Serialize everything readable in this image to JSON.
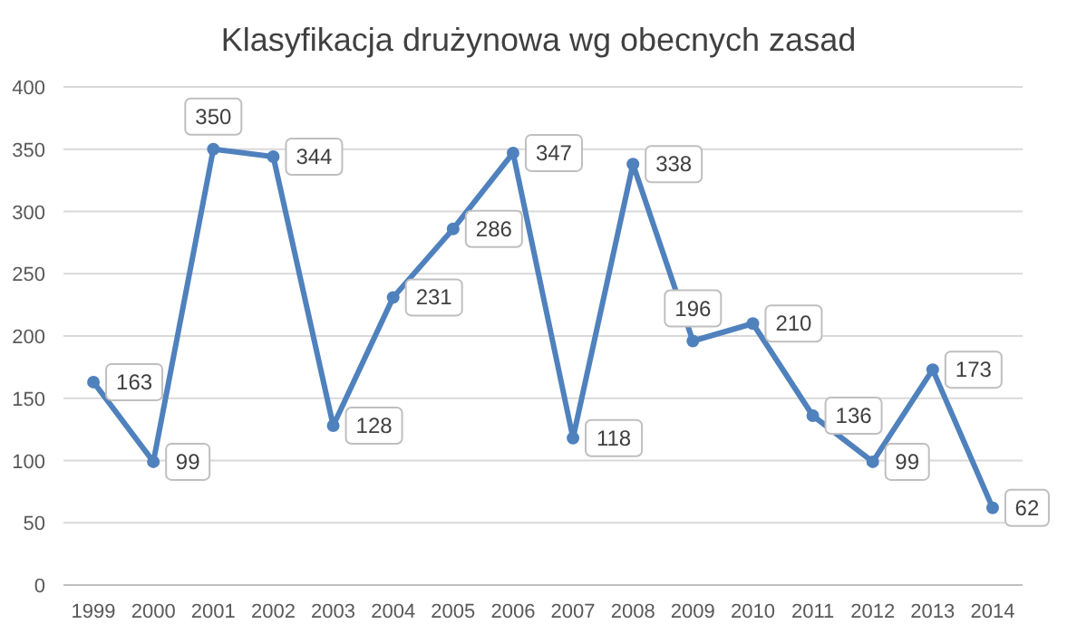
{
  "chart_data": {
    "type": "line",
    "title": "Klasyfikacja drużynowa wg obecnych zasad",
    "categories": [
      "1999",
      "2000",
      "2001",
      "2002",
      "2003",
      "2004",
      "2005",
      "2006",
      "2007",
      "2008",
      "2009",
      "2010",
      "2011",
      "2012",
      "2013",
      "2014"
    ],
    "series": [
      {
        "color": "#4f81bd",
        "values": [
          163,
          99,
          350,
          344,
          128,
          231,
          286,
          347,
          118,
          338,
          196,
          210,
          136,
          99,
          173,
          62
        ]
      }
    ],
    "ylim": [
      0,
      400
    ],
    "yticks": [
      0,
      50,
      100,
      150,
      200,
      250,
      300,
      350,
      400
    ],
    "grid": "y",
    "data_labels": true,
    "marker": "circle",
    "line_style": "solid"
  }
}
